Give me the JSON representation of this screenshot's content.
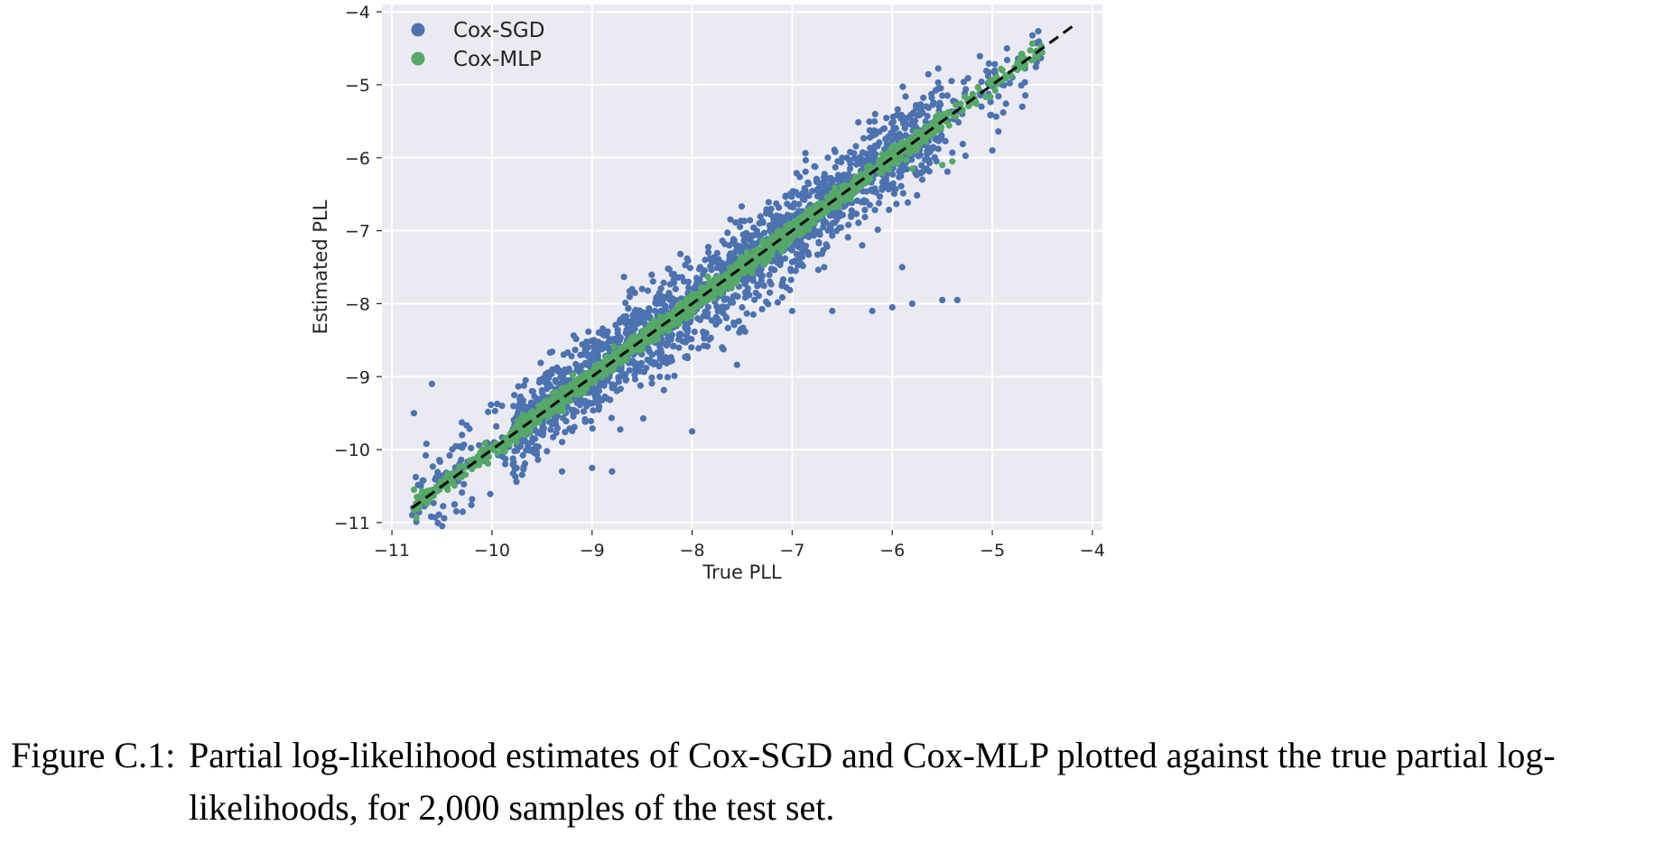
{
  "chart_data": {
    "type": "scatter",
    "xlabel": "True PLL",
    "ylabel": "Estimated PLL",
    "xlim": [
      -11.1,
      -3.9
    ],
    "ylim": [
      -11.1,
      -3.9
    ],
    "xticks": [
      -11,
      -10,
      -9,
      -8,
      -7,
      -6,
      -5,
      -4
    ],
    "yticks": [
      -11,
      -10,
      -9,
      -8,
      -7,
      -6,
      -5,
      -4
    ],
    "xtick_labels": [
      "−11",
      "−10",
      "−9",
      "−8",
      "−7",
      "−6",
      "−5",
      "−4"
    ],
    "ytick_labels": [
      "−11",
      "−10",
      "−9",
      "−8",
      "−7",
      "−6",
      "−5",
      "−4"
    ],
    "grid": true,
    "legend_position": "top-left",
    "reference_line": {
      "style": "dashed",
      "color": "#000000",
      "from": [
        -10.8,
        -10.8
      ],
      "to": [
        -4.2,
        -4.2
      ]
    },
    "series": [
      {
        "name": "Cox-SGD",
        "color": "#4c72b0",
        "n_points": 2000,
        "approx_noise_sd": 0.32,
        "sample_points": [
          [
            -10.78,
            -9.5
          ],
          [
            -10.6,
            -9.1
          ],
          [
            -10.3,
            -9.8
          ],
          [
            -9.3,
            -10.3
          ],
          [
            -9.0,
            -10.25
          ],
          [
            -8.8,
            -10.3
          ],
          [
            -8.0,
            -9.75
          ],
          [
            -7.7,
            -8.6
          ],
          [
            -7.5,
            -8.05
          ],
          [
            -7.2,
            -7.2
          ],
          [
            -7.0,
            -8.1
          ],
          [
            -6.6,
            -8.1
          ],
          [
            -6.2,
            -8.1
          ],
          [
            -6.0,
            -8.05
          ],
          [
            -5.8,
            -8.0
          ],
          [
            -5.5,
            -7.95
          ],
          [
            -5.35,
            -7.95
          ],
          [
            -6.3,
            -7.2
          ],
          [
            -5.9,
            -7.5
          ],
          [
            -5.8,
            -5.9
          ],
          [
            -5.7,
            -6.3
          ],
          [
            -5.5,
            -5.15
          ],
          [
            -5.3,
            -5.4
          ],
          [
            -5.0,
            -5.9
          ],
          [
            -4.9,
            -5.0
          ],
          [
            -4.7,
            -5.3
          ],
          [
            -4.8,
            -4.9
          ],
          [
            -6.2,
            -5.7
          ],
          [
            -6.5,
            -6.0
          ],
          [
            -7.8,
            -7.4
          ],
          [
            -8.4,
            -8.7
          ],
          [
            -9.0,
            -8.8
          ],
          [
            -9.6,
            -9.2
          ],
          [
            -9.9,
            -9.4
          ],
          [
            -8.6,
            -7.8
          ],
          [
            -8.2,
            -7.6
          ]
        ]
      },
      {
        "name": "Cox-MLP",
        "color": "#55a868",
        "n_points": 2000,
        "approx_noise_sd": 0.06,
        "sample_points": [
          [
            -10.78,
            -10.55
          ],
          [
            -10.75,
            -10.65
          ],
          [
            -10.5,
            -10.5
          ],
          [
            -10.1,
            -10.0
          ],
          [
            -9.8,
            -9.75
          ],
          [
            -9.5,
            -9.5
          ],
          [
            -9.0,
            -8.95
          ],
          [
            -8.5,
            -8.5
          ],
          [
            -8.0,
            -8.0
          ],
          [
            -7.5,
            -7.5
          ],
          [
            -7.0,
            -7.0
          ],
          [
            -6.5,
            -6.5
          ],
          [
            -6.0,
            -6.0
          ],
          [
            -5.8,
            -6.15
          ],
          [
            -5.5,
            -6.1
          ],
          [
            -5.4,
            -6.05
          ],
          [
            -5.5,
            -5.45
          ],
          [
            -5.0,
            -4.95
          ],
          [
            -4.7,
            -4.72
          ],
          [
            -4.7,
            -4.65
          ],
          [
            -6.3,
            -6.3
          ],
          [
            -5.9,
            -5.85
          ]
        ]
      }
    ]
  },
  "caption": {
    "label": "Figure C.1:",
    "text": "Partial log-likelihood estimates of Cox-SGD and Cox-MLP plotted against the true partial log-likelihoods, for 2,000 samples of the test set."
  }
}
